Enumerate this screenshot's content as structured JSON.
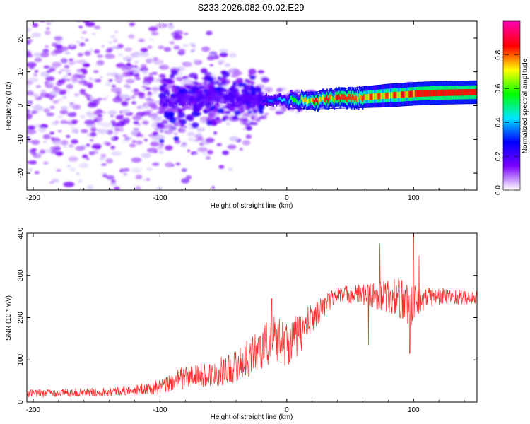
{
  "title": "S233.2026.082.09.02.E29",
  "chart_data": [
    {
      "type": "heatmap",
      "xlabel": "Height of straight line (km)",
      "ylabel": "Frequency (Hz)",
      "xlim": [
        -205,
        150
      ],
      "ylim": [
        -25,
        25
      ],
      "xticks": [
        -200,
        -100,
        0,
        100
      ],
      "yticks": [
        -20,
        -10,
        0,
        10,
        20
      ],
      "colorbar": {
        "label": "Normalized spectral amplitude",
        "range": [
          0,
          1
        ],
        "ticks": [
          0.0,
          0.2,
          0.4,
          0.6,
          0.8
        ],
        "colors": [
          "#ffffff",
          "#7a00ff",
          "#0000ff",
          "#00e5ff",
          "#00ff00",
          "#ffff00",
          "#ff0000",
          "#ff00aa"
        ]
      },
      "ridge": [
        {
          "x": -100,
          "f": 1.5,
          "amp": 0.15
        },
        {
          "x": -80,
          "f": 2.0,
          "amp": 0.18
        },
        {
          "x": -60,
          "f": 2.5,
          "amp": 0.2
        },
        {
          "x": -40,
          "f": 2.0,
          "amp": 0.22
        },
        {
          "x": -20,
          "f": 1.5,
          "amp": 0.3
        },
        {
          "x": 0,
          "f": 1.5,
          "amp": 0.45
        },
        {
          "x": 20,
          "f": 1.5,
          "amp": 0.85
        },
        {
          "x": 40,
          "f": 2.0,
          "amp": 0.85
        },
        {
          "x": 60,
          "f": 2.5,
          "amp": 0.8
        },
        {
          "x": 80,
          "f": 3.0,
          "amp": 0.8
        },
        {
          "x": 100,
          "f": 3.5,
          "amp": 0.85
        },
        {
          "x": 120,
          "f": 3.8,
          "amp": 0.85
        },
        {
          "x": 150,
          "f": 4.0,
          "amp": 0.85
        }
      ]
    },
    {
      "type": "line",
      "xlabel": "Height of straight line (km)",
      "ylabel": "SNR (10 * v/v)",
      "xlim": [
        -205,
        150
      ],
      "ylim": [
        0,
        400
      ],
      "xticks": [
        -200,
        -100,
        0,
        100
      ],
      "yticks": [
        0,
        100,
        200,
        300,
        400
      ],
      "series": [
        {
          "name": "SNR",
          "color": "#ff2a2a",
          "x": [
            -205,
            -180,
            -150,
            -120,
            -100,
            -80,
            -60,
            -40,
            -30,
            -20,
            -10,
            0,
            10,
            20,
            30,
            40,
            60,
            80,
            90,
            100,
            110,
            130,
            150
          ],
          "y": [
            20,
            22,
            24,
            28,
            35,
            60,
            65,
            85,
            105,
            130,
            150,
            140,
            160,
            200,
            230,
            255,
            255,
            250,
            245,
            230,
            250,
            250,
            245
          ],
          "noise": [
            10,
            10,
            10,
            12,
            18,
            28,
            30,
            40,
            45,
            55,
            55,
            55,
            50,
            35,
            25,
            20,
            25,
            40,
            50,
            55,
            25,
            20,
            18
          ]
        }
      ]
    }
  ]
}
